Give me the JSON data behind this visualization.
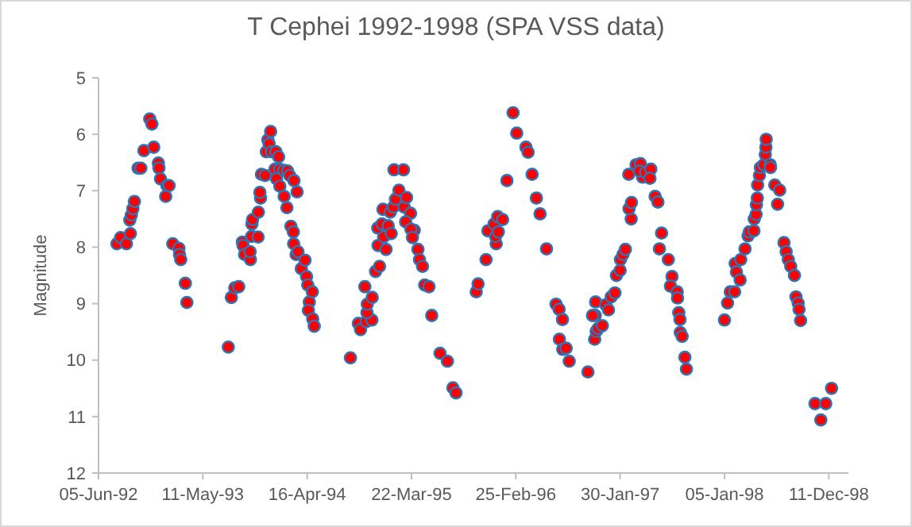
{
  "chart_data": {
    "type": "scatter",
    "title": "T Cephei 1992-1998 (SPA VSS data)",
    "ylabel": "Magnitude",
    "marker": "circle",
    "grid": false,
    "xlim": [
      "1992-06-05",
      "1999-02-13"
    ],
    "xticks": [
      {
        "value": "1992-06-05",
        "label": "05-Jun-92"
      },
      {
        "value": "1993-05-11",
        "label": "11-May-93"
      },
      {
        "value": "1994-04-16",
        "label": "16-Apr-94"
      },
      {
        "value": "1995-03-22",
        "label": "22-Mar-95"
      },
      {
        "value": "1996-02-25",
        "label": "25-Feb-96"
      },
      {
        "value": "1997-01-30",
        "label": "30-Jan-97"
      },
      {
        "value": "1998-01-05",
        "label": "05-Jan-98"
      },
      {
        "value": "1998-12-11",
        "label": "11-Dec-98"
      }
    ],
    "ylim": [
      12,
      5
    ],
    "yticks": [
      5,
      6,
      7,
      8,
      9,
      10,
      11,
      12
    ],
    "series": [
      {
        "color": "#ff0000",
        "x": [
          "1992-08-04",
          "1992-08-16",
          "1992-09-04",
          "1992-09-17",
          "1992-09-15",
          "1992-09-20",
          "1992-09-25",
          "1992-09-30",
          "1992-10-12",
          "1992-10-21",
          "1992-10-31",
          "1992-11-19",
          "1992-11-26",
          "1992-12-02",
          "1992-12-17",
          "1992-12-19",
          "1992-12-24",
          "1993-01-14",
          "1993-01-21",
          "1993-01-10",
          "1993-02-02",
          "1993-02-22",
          "1993-02-24",
          "1993-02-28",
          "1993-03-15",
          "1993-03-20",
          "1993-08-02",
          "1993-08-12",
          "1993-08-23",
          "1993-09-05",
          "1993-09-17",
          "1993-09-19",
          "1993-09-24",
          "1993-10-13",
          "1993-10-12",
          "1993-10-17",
          "1993-10-18",
          "1993-10-20",
          "1993-11-07",
          "1993-11-08",
          "1993-11-15",
          "1993-11-13",
          "1993-11-18",
          "1993-11-30",
          "1993-12-04",
          "1993-12-09",
          "1993-12-18",
          "1993-12-13",
          "1993-12-21",
          "1994-01-04",
          "1994-01-13",
          "1994-01-01",
          "1994-01-16",
          "1994-01-06",
          "1994-01-17",
          "1994-01-30",
          "1994-02-11",
          "1994-02-18",
          "1994-03-04",
          "1994-03-14",
          "1994-01-31",
          "1994-02-09",
          "1994-02-22",
          "1994-03-02",
          "1994-03-03",
          "1994-03-11",
          "1994-03-17",
          "1994-03-28",
          "1994-04-09",
          "1994-04-14",
          "1994-04-18",
          "1994-04-23",
          "1994-04-20",
          "1994-05-03",
          "1994-05-04",
          "1994-05-09",
          "1994-09-04",
          "1994-09-30",
          "1994-10-07",
          "1994-10-25",
          "1994-11-13",
          "1994-10-28",
          "1994-10-29",
          "1994-11-14",
          "1994-10-21",
          "1994-11-25",
          "1994-12-08",
          "1994-12-03",
          "1994-12-29",
          "1994-12-02",
          "1994-12-16",
          "1994-12-21",
          "1994-12-19",
          "1995-01-05",
          "1995-01-15",
          "1995-01-12",
          "1995-01-22",
          "1995-01-29",
          "1995-02-09",
          "1995-01-24",
          "1995-02-24",
          "1995-02-26",
          "1995-03-06",
          "1995-03-19",
          "1995-03-03",
          "1995-03-31",
          "1995-03-20",
          "1995-03-25",
          "1995-04-12",
          "1995-04-17",
          "1995-04-27",
          "1995-05-04",
          "1995-05-18",
          "1995-05-27",
          "1995-06-23",
          "1995-07-17",
          "1995-08-04",
          "1995-08-14",
          "1995-10-19",
          "1995-10-25",
          "1995-11-20",
          "1995-11-26",
          "1995-12-16",
          "1995-12-23",
          "1995-12-21",
          "1995-12-28",
          "1996-01-13",
          "1995-12-30",
          "1996-01-27",
          "1996-02-16",
          "1996-02-28",
          "1996-03-29",
          "1996-04-05",
          "1996-04-18",
          "1996-05-02",
          "1996-05-14",
          "1996-06-04",
          "1996-07-05",
          "1996-07-15",
          "1996-07-26",
          "1996-07-16",
          "1996-07-27",
          "1996-08-07",
          "1996-08-17",
          "1996-10-17",
          "1996-11-10",
          "1996-11-11",
          "1996-11-08",
          "1996-11-13",
          "1996-11-19",
          "1996-12-03",
          "1996-11-01",
          "1996-12-14",
          "1996-12-23",
          "1997-01-01",
          "1997-01-13",
          "1997-01-18",
          "1997-01-30",
          "1997-01-31",
          "1997-02-08",
          "1997-02-16",
          "1997-03-07",
          "1997-02-28",
          "1997-03-08",
          "1997-02-27",
          "1997-03-23",
          "1997-04-06",
          "1997-04-13",
          "1997-04-03",
          "1997-04-23",
          "1997-05-10",
          "1997-05-07",
          "1997-05-24",
          "1997-06-02",
          "1997-06-14",
          "1997-06-07",
          "1997-07-06",
          "1997-07-18",
          "1997-07-13",
          "1997-08-04",
          "1997-08-05",
          "1997-08-09",
          "1997-08-13",
          "1997-08-14",
          "1997-08-20",
          "1997-08-29",
          "1997-09-03",
          "1998-01-05",
          "1998-01-15",
          "1998-01-24",
          "1998-02-07",
          "1998-02-09",
          "1998-02-13",
          "1998-02-25",
          "1998-02-27",
          "1998-03-13",
          "1998-03-23",
          "1998-03-27",
          "1998-04-11",
          "1998-04-12",
          "1998-04-18",
          "1998-04-19",
          "1998-04-22",
          "1998-04-23",
          "1998-04-29",
          "1998-05-02",
          "1998-05-13",
          "1998-05-18",
          "1998-05-20",
          "1998-05-21",
          "1998-06-03",
          "1998-06-04",
          "1998-06-18",
          "1998-07-04",
          "1998-06-27",
          "1998-07-18",
          "1998-07-25",
          "1998-08-01",
          "1998-08-09",
          "1998-08-21",
          "1998-08-26",
          "1998-09-02",
          "1998-09-05",
          "1998-09-10",
          "1998-10-27",
          "1998-12-01",
          "1998-11-15",
          "1998-12-20"
        ],
        "values": [
          7.94,
          7.83,
          7.94,
          7.76,
          7.52,
          7.43,
          7.32,
          7.19,
          6.6,
          6.6,
          6.29,
          5.73,
          5.82,
          6.23,
          6.51,
          6.6,
          6.79,
          6.91,
          6.91,
          7.1,
          7.94,
          8.02,
          8.13,
          8.22,
          8.64,
          8.98,
          9.77,
          8.89,
          8.72,
          8.7,
          7.91,
          7.97,
          8.13,
          8.22,
          8.08,
          7.81,
          7.59,
          7.51,
          7.82,
          7.38,
          7.13,
          7.03,
          6.71,
          6.73,
          6.31,
          6.1,
          5.95,
          6.17,
          6.31,
          6.31,
          6.4,
          6.62,
          6.62,
          6.79,
          6.92,
          6.64,
          6.65,
          6.73,
          6.82,
          7.02,
          7.1,
          7.3,
          7.63,
          7.73,
          7.94,
          8.13,
          8.08,
          8.38,
          8.23,
          8.52,
          8.67,
          8.97,
          9.12,
          8.79,
          9.27,
          9.4,
          9.96,
          9.35,
          9.46,
          9.32,
          9.29,
          9.16,
          9.01,
          8.89,
          8.7,
          8.43,
          8.34,
          7.97,
          8.04,
          7.66,
          7.59,
          7.82,
          7.33,
          7.62,
          7.76,
          7.38,
          7.29,
          7.15,
          6.99,
          6.63,
          6.63,
          7.29,
          7.12,
          7.4,
          7.55,
          7.7,
          7.68,
          7.83,
          8.04,
          8.22,
          8.34,
          8.67,
          8.7,
          9.21,
          9.88,
          10.02,
          10.49,
          10.58,
          8.79,
          8.65,
          8.22,
          7.71,
          7.59,
          7.94,
          7.81,
          7.46,
          7.51,
          7.73,
          6.82,
          5.62,
          5.98,
          6.23,
          6.32,
          6.71,
          7.13,
          7.41,
          8.03,
          9.01,
          9.1,
          9.28,
          9.63,
          9.81,
          9.79,
          10.02,
          10.21,
          9.21,
          8.97,
          9.63,
          9.49,
          9.44,
          9.39,
          9.21,
          9.02,
          9.11,
          8.88,
          8.81,
          8.5,
          8.41,
          8.22,
          8.13,
          8.04,
          7.5,
          7.32,
          7.21,
          6.71,
          6.54,
          6.52,
          6.76,
          6.65,
          6.68,
          6.62,
          6.78,
          7.1,
          7.2,
          7.75,
          8.03,
          8.22,
          8.52,
          8.69,
          8.79,
          8.9,
          9.16,
          9.28,
          9.51,
          9.58,
          9.95,
          10.16,
          9.29,
          8.99,
          8.79,
          8.79,
          8.29,
          8.44,
          8.58,
          8.22,
          8.03,
          7.8,
          7.73,
          7.71,
          7.5,
          7.42,
          7.25,
          7.13,
          6.9,
          6.73,
          6.59,
          6.54,
          6.36,
          6.23,
          6.09,
          6.54,
          6.59,
          6.9,
          6.99,
          7.24,
          7.92,
          8.08,
          8.22,
          8.34,
          8.5,
          8.88,
          8.99,
          9.1,
          9.3,
          10.77,
          10.77,
          11.06,
          10.5
        ]
      }
    ]
  }
}
